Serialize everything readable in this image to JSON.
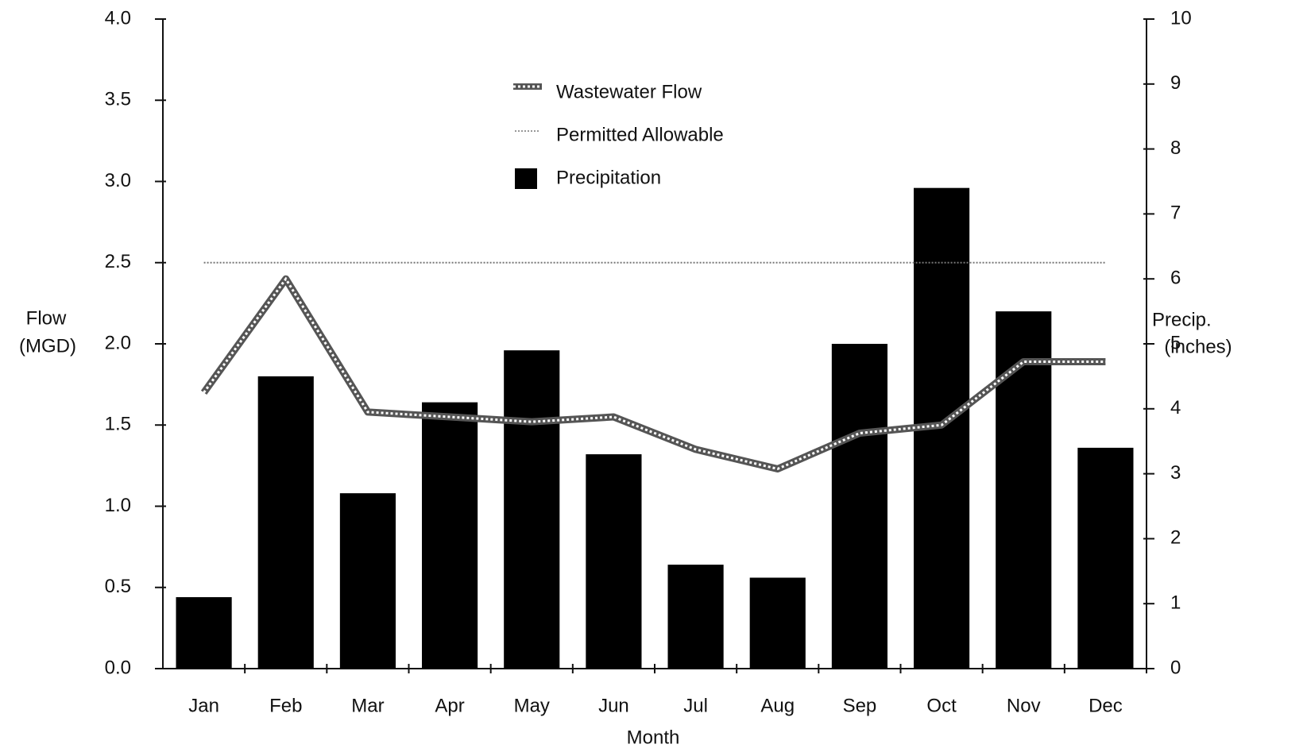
{
  "chart_data": {
    "type": "combo",
    "xlabel": "Month",
    "ylabel": [
      "Flow",
      "(MGD)"
    ],
    "y2label": [
      "Precip.",
      "(inches)"
    ],
    "categories": [
      "Jan",
      "Feb",
      "Mar",
      "Apr",
      "May",
      "Jun",
      "Jul",
      "Aug",
      "Sep",
      "Oct",
      "Nov",
      "Dec"
    ],
    "series": [
      {
        "name": "Wastewater Flow",
        "type": "line",
        "style": "hatched",
        "color": "#555555",
        "axis": "y",
        "values": [
          1.7,
          2.4,
          1.58,
          1.55,
          1.52,
          1.55,
          1.35,
          1.23,
          1.45,
          1.5,
          1.89,
          1.89
        ]
      },
      {
        "name": "Permitted  Allowable",
        "type": "line",
        "style": "dotted",
        "color": "#777777",
        "axis": "y",
        "values": [
          2.5,
          2.5,
          2.5,
          2.5,
          2.5,
          2.5,
          2.5,
          2.5,
          2.5,
          2.5,
          2.5,
          2.5
        ]
      },
      {
        "name": "Precipitation",
        "type": "bar",
        "color": "#000000",
        "axis": "y2",
        "values": [
          1.1,
          4.5,
          2.7,
          4.1,
          4.9,
          3.3,
          1.6,
          1.4,
          5.0,
          7.4,
          5.5,
          3.4
        ]
      }
    ],
    "ylim": [
      0,
      4
    ],
    "yticks": [
      {
        "value": 0,
        "label": "0.0"
      },
      0.5,
      {
        "value": 1,
        "label": "1.0"
      },
      1.5,
      {
        "value": 2,
        "label": "2.0"
      },
      2.5,
      {
        "value": 3,
        "label": "3.0"
      },
      3.5,
      {
        "value": 4,
        "label": "4.0"
      }
    ],
    "y2lim": [
      0,
      10
    ],
    "y2ticks": [
      0,
      1,
      2,
      3,
      4,
      5,
      6,
      7,
      8,
      9,
      10
    ],
    "grid": false
  }
}
